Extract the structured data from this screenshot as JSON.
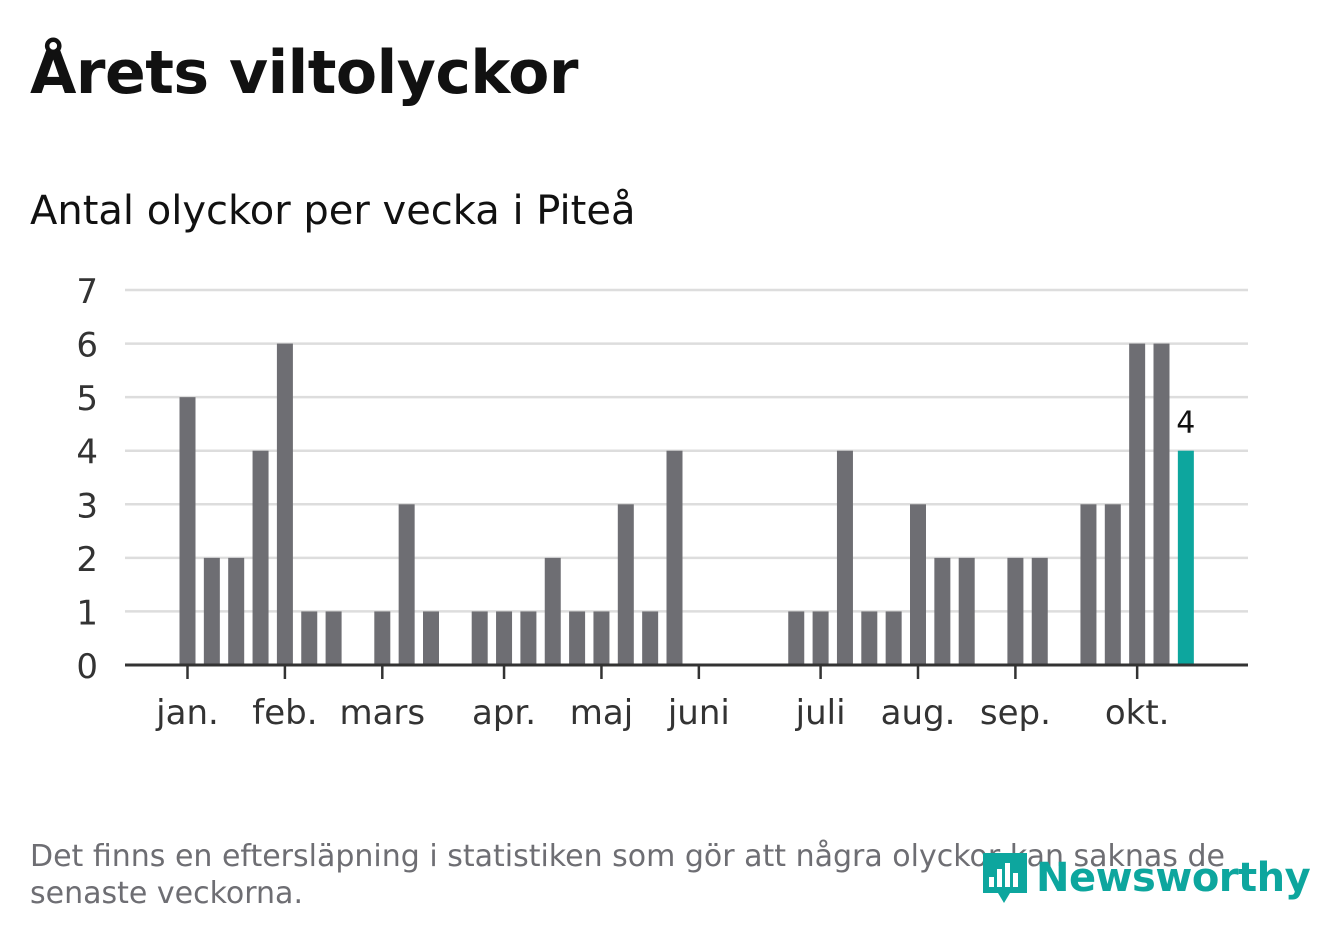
{
  "title": "Årets viltolyckor",
  "subtitle": "Antal olyckor per vecka i Piteå",
  "note": "Det finns en eftersläpning i statistiken som gör att några olyckor kan saknas de senaste veckorna.",
  "logo": {
    "text": "Newsworthy",
    "icon": "bar-chart-speech-bubble-icon"
  },
  "colors": {
    "bar": "#6e6e73",
    "highlight": "#0da69e",
    "grid": "#dddddd",
    "axis": "#333333",
    "logo": "#0da69e"
  },
  "chart_data": {
    "type": "bar",
    "title": "Antal olyckor per vecka i Piteå",
    "xlabel": "",
    "ylabel": "",
    "ylim": [
      0,
      7
    ],
    "yticks": [
      "0",
      "1",
      "2",
      "3",
      "4",
      "5",
      "6",
      "7"
    ],
    "grid": true,
    "weeks": [
      1,
      2,
      3,
      4,
      5,
      6,
      7,
      8,
      9,
      10,
      11,
      12,
      13,
      14,
      15,
      16,
      17,
      18,
      19,
      20,
      21,
      22,
      23,
      24,
      25,
      26,
      27,
      28,
      29,
      30,
      31,
      32,
      33,
      34,
      35,
      36,
      37,
      38,
      39,
      40,
      41,
      42
    ],
    "values": [
      5,
      2,
      2,
      4,
      6,
      1,
      1,
      0,
      1,
      3,
      1,
      0,
      1,
      1,
      1,
      2,
      1,
      1,
      3,
      1,
      4,
      0,
      0,
      0,
      0,
      1,
      1,
      4,
      1,
      1,
      3,
      2,
      2,
      0,
      2,
      2,
      0,
      3,
      3,
      6,
      6,
      4
    ],
    "highlight_index": 41,
    "highlight_label": "4",
    "month_labels": [
      "jan.",
      "feb.",
      "mars",
      "apr.",
      "maj",
      "juni",
      "juli",
      "aug.",
      "sep.",
      "okt."
    ],
    "month_tick_weeks": [
      1,
      5,
      9,
      14,
      18,
      22,
      27,
      31,
      35,
      40
    ]
  }
}
